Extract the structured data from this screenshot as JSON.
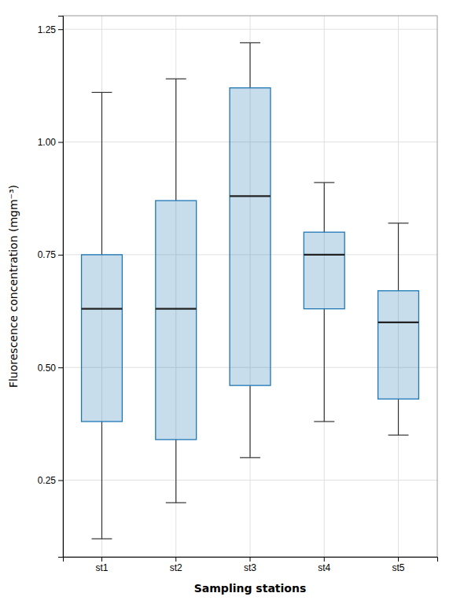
{
  "chart_data": {
    "type": "box",
    "categories": [
      "st1",
      "st2",
      "st3",
      "st4",
      "st5"
    ],
    "boxes": [
      {
        "whislo": 0.12,
        "q1": 0.38,
        "med": 0.63,
        "q3": 0.75,
        "whishi": 1.11
      },
      {
        "whislo": 0.2,
        "q1": 0.34,
        "med": 0.63,
        "q3": 0.87,
        "whishi": 1.14
      },
      {
        "whislo": 0.3,
        "q1": 0.46,
        "med": 0.88,
        "q3": 1.12,
        "whishi": 1.22
      },
      {
        "whislo": 0.38,
        "q1": 0.63,
        "med": 0.75,
        "q3": 0.8,
        "whishi": 0.91
      },
      {
        "whislo": 0.35,
        "q1": 0.43,
        "med": 0.6,
        "q3": 0.67,
        "whishi": 0.82
      }
    ],
    "x_label": "Sampling stations",
    "y_label": "Fluorescence concentration (mgm⁻³)",
    "ylim": [
      0.08,
      1.28
    ],
    "yticks": [
      0.25,
      {
        "value": 0.5,
        "label": "0.50"
      },
      0.75,
      {
        "value": 1.0,
        "label": "1.00"
      },
      1.25
    ],
    "grid": true
  }
}
